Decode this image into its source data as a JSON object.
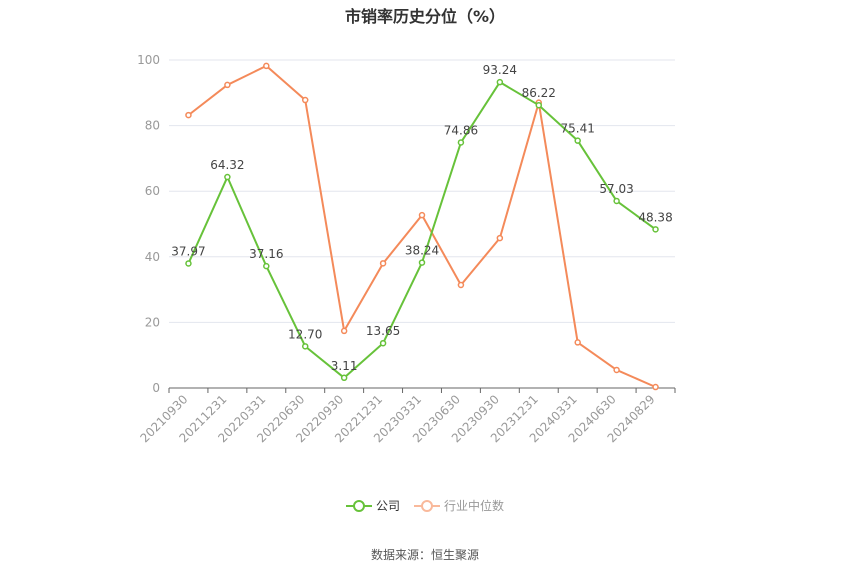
{
  "title": "市销率历史分位（%）",
  "legend": {
    "company": "公司",
    "industry": "行业中位数"
  },
  "source": "数据来源：恒生聚源",
  "colors": {
    "company": "#67c23a",
    "industry": "#f48a5a",
    "industry_legend": "#f9b99b",
    "grid": "#e3e6ee",
    "axis": "#666666",
    "tick_label": "#999999",
    "data_label": "#444444"
  },
  "chart_data": {
    "type": "line",
    "title": "市销率历史分位（%）",
    "xlabel": "",
    "ylabel": "",
    "ylim": [
      0,
      100
    ],
    "yticks": [
      0,
      20,
      40,
      60,
      80,
      100
    ],
    "grid": true,
    "legend_position": "bottom",
    "categories": [
      "20210930",
      "20211231",
      "20220331",
      "20220630",
      "20220930",
      "20221231",
      "20230331",
      "20230630",
      "20230930",
      "20231231",
      "20240331",
      "20240630",
      "20240829"
    ],
    "series": [
      {
        "name": "公司",
        "values": [
          37.97,
          64.32,
          37.16,
          12.7,
          3.11,
          13.65,
          38.24,
          74.86,
          93.24,
          86.22,
          75.41,
          57.03,
          48.38
        ],
        "labels": [
          "37.97",
          "64.32",
          "37.16",
          "12.70",
          "3.11",
          "13.65",
          "38.24",
          "74.86",
          "93.24",
          "86.22",
          "75.41",
          "57.03",
          "48.38"
        ]
      },
      {
        "name": "行业中位数",
        "values": [
          83.2,
          92.4,
          98.2,
          87.8,
          17.4,
          38.0,
          52.7,
          31.4,
          45.7,
          87.0,
          13.9,
          5.5,
          0.3
        ]
      }
    ]
  }
}
